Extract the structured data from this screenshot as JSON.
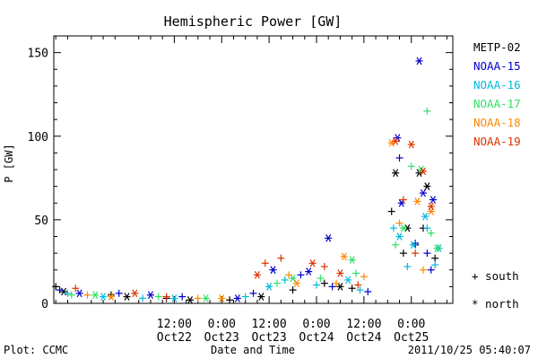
{
  "chart_data": {
    "type": "scatter",
    "title": "Hemispheric Power [GW]",
    "xlabel": "Date and Time",
    "ylabel": "P [GW]",
    "ylim": [
      0,
      160
    ],
    "xlim": [
      "2011-10-21 05:30",
      "2011-10-25 10:30"
    ],
    "yticks": [
      "0",
      "50",
      "100",
      "150"
    ],
    "xticks": [
      {
        "time": "12:00",
        "date": "Oct22",
        "at": "2011-10-22 12:00"
      },
      {
        "time": "0:00",
        "date": "Oct23",
        "at": "2011-10-23 00:00"
      },
      {
        "time": "12:00",
        "date": "Oct23",
        "at": "2011-10-23 12:00"
      },
      {
        "time": "0:00",
        "date": "Oct24",
        "at": "2011-10-24 00:00"
      },
      {
        "time": "12:00",
        "date": "Oct24",
        "at": "2011-10-24 12:00"
      },
      {
        "time": "0:00",
        "date": "Oct25",
        "at": "2011-10-25 00:00"
      }
    ],
    "grid": false,
    "legend_position": "right",
    "marker_legend": {
      "south": "+ south",
      "north": "* north"
    },
    "series": [
      {
        "name": "METP-02",
        "color": "#000000",
        "south": [
          [
            "2011-10-21 06:00",
            10
          ],
          [
            "2011-10-21 20:00",
            5
          ],
          [
            "2011-10-22 10:00",
            3
          ],
          [
            "2011-10-23 02:00",
            2
          ],
          [
            "2011-10-23 18:00",
            8
          ],
          [
            "2011-10-24 02:00",
            12
          ],
          [
            "2011-10-24 09:00",
            9
          ],
          [
            "2011-10-24 19:00",
            55
          ],
          [
            "2011-10-24 22:00",
            30
          ],
          [
            "2011-10-25 01:00",
            35
          ],
          [
            "2011-10-25 03:00",
            45
          ],
          [
            "2011-10-25 06:00",
            27
          ]
        ],
        "north": [
          [
            "2011-10-21 08:00",
            7
          ],
          [
            "2011-10-22 00:00",
            4
          ],
          [
            "2011-10-22 16:00",
            2
          ],
          [
            "2011-10-23 10:00",
            4
          ],
          [
            "2011-10-24 06:00",
            10
          ],
          [
            "2011-10-24 20:00",
            78
          ],
          [
            "2011-10-24 23:00",
            45
          ],
          [
            "2011-10-25 02:00",
            78
          ],
          [
            "2011-10-25 04:00",
            70
          ]
        ]
      },
      {
        "name": "NOAA-15",
        "color": "#0000cc",
        "south": [
          [
            "2011-10-21 07:00",
            8
          ],
          [
            "2011-10-21 22:00",
            6
          ],
          [
            "2011-10-22 14:00",
            4
          ],
          [
            "2011-10-23 08:00",
            6
          ],
          [
            "2011-10-23 20:00",
            17
          ],
          [
            "2011-10-24 04:00",
            10
          ],
          [
            "2011-10-24 13:00",
            7
          ],
          [
            "2011-10-24 21:00",
            87
          ],
          [
            "2011-10-25 01:00",
            36
          ],
          [
            "2011-10-25 04:00",
            30
          ],
          [
            "2011-10-25 05:00",
            20
          ]
        ],
        "north": [
          [
            "2011-10-21 12:00",
            6
          ],
          [
            "2011-10-22 06:00",
            5
          ],
          [
            "2011-10-23 04:00",
            3
          ],
          [
            "2011-10-23 13:00",
            20
          ],
          [
            "2011-10-23 22:00",
            19
          ],
          [
            "2011-10-24 03:00",
            39
          ],
          [
            "2011-10-24 20:30",
            99
          ],
          [
            "2011-10-24 21:30",
            60
          ],
          [
            "2011-10-25 02:00",
            145
          ],
          [
            "2011-10-25 03:00",
            66
          ],
          [
            "2011-10-25 05:30",
            62
          ]
        ]
      },
      {
        "name": "NOAA-16",
        "color": "#00bbdd",
        "south": [
          [
            "2011-10-21 09:00",
            6
          ],
          [
            "2011-10-22 04:00",
            3
          ],
          [
            "2011-10-23 06:00",
            4
          ],
          [
            "2011-10-23 16:00",
            14
          ],
          [
            "2011-10-24 00:00",
            11
          ],
          [
            "2011-10-24 11:00",
            8
          ],
          [
            "2011-10-24 19:30",
            45
          ],
          [
            "2011-10-24 23:00",
            22
          ],
          [
            "2011-10-25 04:00",
            45
          ],
          [
            "2011-10-25 06:00",
            23
          ]
        ],
        "north": [
          [
            "2011-10-21 18:00",
            4
          ],
          [
            "2011-10-22 12:00",
            3
          ],
          [
            "2011-10-23 12:00",
            10
          ],
          [
            "2011-10-24 08:00",
            14
          ],
          [
            "2011-10-24 21:00",
            40
          ],
          [
            "2011-10-25 00:30",
            35
          ],
          [
            "2011-10-25 03:30",
            52
          ],
          [
            "2011-10-25 07:00",
            33
          ]
        ]
      },
      {
        "name": "NOAA-17",
        "color": "#33dd66",
        "south": [
          [
            "2011-10-21 10:00",
            5
          ],
          [
            "2011-10-22 08:00",
            4
          ],
          [
            "2011-10-23 14:00",
            12
          ],
          [
            "2011-10-24 01:00",
            15
          ],
          [
            "2011-10-24 10:00",
            18
          ],
          [
            "2011-10-24 20:00",
            35
          ],
          [
            "2011-10-25 00:00",
            82
          ],
          [
            "2011-10-25 04:00",
            115
          ],
          [
            "2011-10-25 05:00",
            42
          ]
        ],
        "north": [
          [
            "2011-10-21 16:00",
            5
          ],
          [
            "2011-10-22 20:00",
            3
          ],
          [
            "2011-10-23 18:00",
            15
          ],
          [
            "2011-10-24 09:00",
            26
          ],
          [
            "2011-10-24 22:00",
            45
          ],
          [
            "2011-10-25 02:30",
            80
          ],
          [
            "2011-10-25 06:30",
            33
          ]
        ]
      },
      {
        "name": "NOAA-18",
        "color": "#ff8800",
        "south": [
          [
            "2011-10-21 14:00",
            5
          ],
          [
            "2011-10-22 18:00",
            3
          ],
          [
            "2011-10-23 17:00",
            17
          ],
          [
            "2011-10-24 05:00",
            12
          ],
          [
            "2011-10-24 12:00",
            16
          ],
          [
            "2011-10-24 21:00",
            48
          ],
          [
            "2011-10-25 03:00",
            20
          ]
        ],
        "north": [
          [
            "2011-10-21 20:00",
            4
          ],
          [
            "2011-10-23 00:00",
            3
          ],
          [
            "2011-10-23 19:00",
            12
          ],
          [
            "2011-10-24 07:00",
            28
          ],
          [
            "2011-10-24 19:00",
            96
          ],
          [
            "2011-10-25 01:30",
            61
          ],
          [
            "2011-10-25 05:00",
            55
          ]
        ]
      },
      {
        "name": "NOAA-19",
        "color": "#dd3300",
        "south": [
          [
            "2011-10-21 11:00",
            9
          ],
          [
            "2011-10-22 10:00",
            4
          ],
          [
            "2011-10-23 11:00",
            24
          ],
          [
            "2011-10-23 15:00",
            27
          ],
          [
            "2011-10-24 02:00",
            22
          ],
          [
            "2011-10-24 10:30",
            11
          ],
          [
            "2011-10-24 22:00",
            62
          ],
          [
            "2011-10-25 01:00",
            30
          ]
        ],
        "north": [
          [
            "2011-10-22 02:00",
            6
          ],
          [
            "2011-10-23 09:00",
            17
          ],
          [
            "2011-10-23 23:00",
            24
          ],
          [
            "2011-10-24 06:00",
            18
          ],
          [
            "2011-10-24 20:00",
            97
          ],
          [
            "2011-10-25 00:00",
            95
          ],
          [
            "2011-10-25 03:00",
            79
          ],
          [
            "2011-10-25 05:00",
            58
          ]
        ]
      }
    ]
  },
  "footer": {
    "plot_credit": "Plot: CCMC",
    "timestamp": "2011/10/25 05:40:07"
  }
}
